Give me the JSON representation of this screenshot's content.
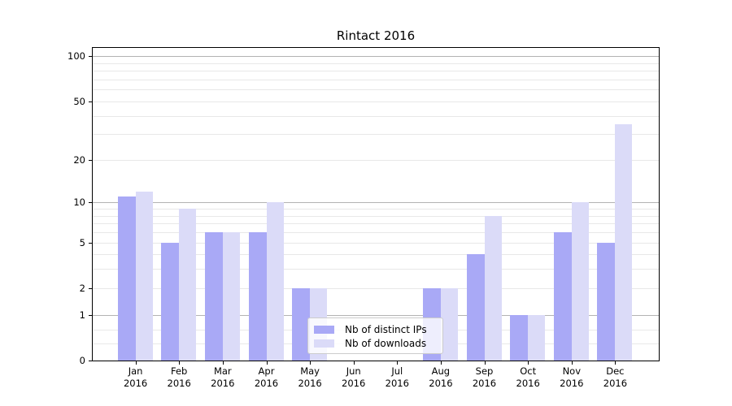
{
  "title": "Rintact 2016",
  "chart_data": {
    "type": "bar",
    "title": "Rintact 2016",
    "categories": [
      "Jan 2016",
      "Feb 2016",
      "Mar 2016",
      "Apr 2016",
      "May 2016",
      "Jun 2016",
      "Jul 2016",
      "Aug 2016",
      "Sep 2016",
      "Oct 2016",
      "Nov 2016",
      "Dec 2016"
    ],
    "months": [
      "Jan",
      "Feb",
      "Mar",
      "Apr",
      "May",
      "Jun",
      "Jul",
      "Aug",
      "Sep",
      "Oct",
      "Nov",
      "Dec"
    ],
    "year_line": "2016",
    "series": [
      {
        "name": "Nb of distinct IPs",
        "color": "#a9a9f6",
        "values": [
          11,
          5,
          6,
          6,
          2,
          0,
          0,
          2,
          4,
          1,
          6,
          5
        ]
      },
      {
        "name": "Nb of downloads",
        "color": "#dbdbf8",
        "values": [
          12,
          9,
          6,
          10,
          2,
          0,
          0,
          2,
          8,
          1,
          10,
          35
        ]
      }
    ],
    "yscale": "log10(1+v)",
    "ylim": [
      0,
      115
    ],
    "y_ticks": [
      {
        "v": 100,
        "label": "100"
      },
      {
        "v": 50,
        "label": "50"
      },
      {
        "v": 20,
        "label": "20"
      },
      {
        "v": 10,
        "label": "10"
      },
      {
        "v": 5,
        "label": "5"
      },
      {
        "v": 2,
        "label": "2"
      },
      {
        "v": 1,
        "label": "1"
      },
      {
        "v": 0,
        "label": "0"
      }
    ],
    "y_major_gridlines": [
      1,
      10,
      100
    ],
    "y_minor_gridlines": [
      0.3,
      0.6,
      2,
      3,
      4,
      5,
      6,
      7,
      8,
      9,
      20,
      30,
      40,
      50,
      60,
      70,
      80,
      90
    ],
    "grid": true,
    "legend_position": "lower center"
  },
  "colors": {
    "background": "#ffffff",
    "axis": "#000000",
    "grid_major": "#b3b3b3",
    "grid_minor": "#e8e8e8",
    "text": "#000000",
    "legend_border": "#cccccc"
  }
}
